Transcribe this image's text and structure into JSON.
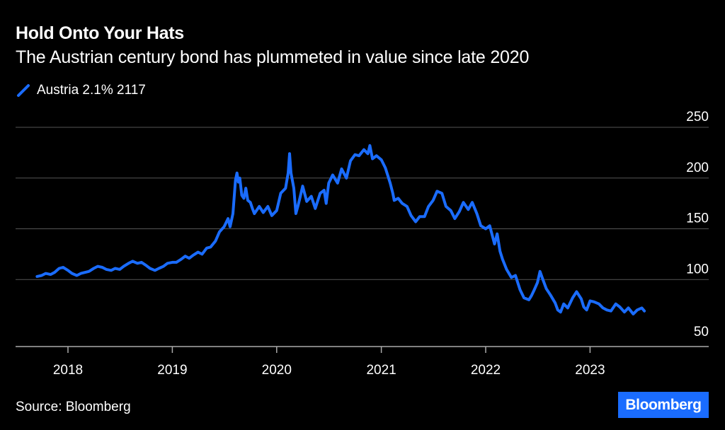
{
  "header": {
    "title": "Hold Onto Your Hats",
    "subtitle": "The Austrian century bond has plummeted in value since late 2020"
  },
  "footer": {
    "source": "Source: Bloomberg",
    "logo_text": "Bloomberg"
  },
  "colors": {
    "background": "#000000",
    "series": "#1a6cff",
    "grid": "#555555",
    "text": "#ffffff",
    "logo_bg": "#1a6cff"
  },
  "chart_data": {
    "type": "line",
    "title": "Hold Onto Your Hats",
    "subtitle": "The Austrian century bond has plummeted in value since late 2020",
    "xlabel": "",
    "ylabel": "",
    "y_axis_position": "right",
    "ylim": [
      45,
      250
    ],
    "yticks": [
      50,
      100,
      150,
      200,
      250
    ],
    "xticks": [
      "2018",
      "2019",
      "2020",
      "2021",
      "2022",
      "2023"
    ],
    "xlim": [
      "2017-09-01",
      "2024-01-01"
    ],
    "grid": "horizontal",
    "legend_position": "top-left",
    "series": [
      {
        "name": "Austria 2.1% 2117",
        "color": "#1a6cff",
        "points": [
          [
            "2017-09-15",
            103
          ],
          [
            "2017-10-01",
            104
          ],
          [
            "2017-10-15",
            106
          ],
          [
            "2017-11-01",
            105
          ],
          [
            "2017-11-15",
            107
          ],
          [
            "2017-12-01",
            111
          ],
          [
            "2017-12-15",
            112
          ],
          [
            "2018-01-01",
            109
          ],
          [
            "2018-01-15",
            106
          ],
          [
            "2018-02-01",
            104
          ],
          [
            "2018-02-15",
            106
          ],
          [
            "2018-03-01",
            107
          ],
          [
            "2018-03-15",
            108
          ],
          [
            "2018-04-01",
            111
          ],
          [
            "2018-04-15",
            113
          ],
          [
            "2018-05-01",
            112
          ],
          [
            "2018-05-15",
            110
          ],
          [
            "2018-06-01",
            109
          ],
          [
            "2018-06-15",
            111
          ],
          [
            "2018-07-01",
            110
          ],
          [
            "2018-07-15",
            113
          ],
          [
            "2018-08-01",
            116
          ],
          [
            "2018-08-15",
            118
          ],
          [
            "2018-09-01",
            116
          ],
          [
            "2018-09-15",
            117
          ],
          [
            "2018-10-01",
            114
          ],
          [
            "2018-10-15",
            111
          ],
          [
            "2018-11-01",
            109
          ],
          [
            "2018-11-15",
            111
          ],
          [
            "2018-12-01",
            113
          ],
          [
            "2018-12-15",
            116
          ],
          [
            "2019-01-01",
            117
          ],
          [
            "2019-01-15",
            117
          ],
          [
            "2019-02-01",
            120
          ],
          [
            "2019-02-15",
            123
          ],
          [
            "2019-03-01",
            121
          ],
          [
            "2019-03-15",
            124
          ],
          [
            "2019-04-01",
            127
          ],
          [
            "2019-04-15",
            125
          ],
          [
            "2019-05-01",
            131
          ],
          [
            "2019-05-15",
            132
          ],
          [
            "2019-06-01",
            138
          ],
          [
            "2019-06-15",
            147
          ],
          [
            "2019-07-01",
            152
          ],
          [
            "2019-07-15",
            160
          ],
          [
            "2019-07-22",
            152
          ],
          [
            "2019-08-01",
            165
          ],
          [
            "2019-08-10",
            198
          ],
          [
            "2019-08-15",
            205
          ],
          [
            "2019-08-20",
            196
          ],
          [
            "2019-08-25",
            200
          ],
          [
            "2019-09-01",
            183
          ],
          [
            "2019-09-08",
            180
          ],
          [
            "2019-09-15",
            190
          ],
          [
            "2019-09-22",
            178
          ],
          [
            "2019-10-01",
            176
          ],
          [
            "2019-10-08",
            170
          ],
          [
            "2019-10-15",
            165
          ],
          [
            "2019-11-01",
            172
          ],
          [
            "2019-11-15",
            166
          ],
          [
            "2019-12-01",
            172
          ],
          [
            "2019-12-15",
            163
          ],
          [
            "2020-01-01",
            168
          ],
          [
            "2020-01-15",
            185
          ],
          [
            "2020-02-01",
            190
          ],
          [
            "2020-02-10",
            205
          ],
          [
            "2020-02-15",
            224
          ],
          [
            "2020-02-20",
            205
          ],
          [
            "2020-03-01",
            190
          ],
          [
            "2020-03-08",
            165
          ],
          [
            "2020-03-15",
            172
          ],
          [
            "2020-03-22",
            180
          ],
          [
            "2020-04-01",
            192
          ],
          [
            "2020-04-15",
            177
          ],
          [
            "2020-05-01",
            182
          ],
          [
            "2020-05-15",
            170
          ],
          [
            "2020-06-01",
            185
          ],
          [
            "2020-06-15",
            188
          ],
          [
            "2020-06-22",
            175
          ],
          [
            "2020-07-01",
            195
          ],
          [
            "2020-07-15",
            203
          ],
          [
            "2020-08-01",
            195
          ],
          [
            "2020-08-15",
            209
          ],
          [
            "2020-09-01",
            200
          ],
          [
            "2020-09-15",
            217
          ],
          [
            "2020-10-01",
            223
          ],
          [
            "2020-10-15",
            222
          ],
          [
            "2020-11-01",
            228
          ],
          [
            "2020-11-15",
            224
          ],
          [
            "2020-11-22",
            232
          ],
          [
            "2020-12-01",
            219
          ],
          [
            "2020-12-15",
            222
          ],
          [
            "2021-01-01",
            218
          ],
          [
            "2021-01-15",
            210
          ],
          [
            "2021-02-01",
            195
          ],
          [
            "2021-02-10",
            185
          ],
          [
            "2021-02-15",
            178
          ],
          [
            "2021-03-01",
            180
          ],
          [
            "2021-03-15",
            175
          ],
          [
            "2021-04-01",
            172
          ],
          [
            "2021-04-15",
            163
          ],
          [
            "2021-05-01",
            157
          ],
          [
            "2021-05-15",
            162
          ],
          [
            "2021-06-01",
            162
          ],
          [
            "2021-06-15",
            172
          ],
          [
            "2021-07-01",
            178
          ],
          [
            "2021-07-15",
            187
          ],
          [
            "2021-08-01",
            185
          ],
          [
            "2021-08-15",
            172
          ],
          [
            "2021-09-01",
            168
          ],
          [
            "2021-09-15",
            160
          ],
          [
            "2021-10-01",
            167
          ],
          [
            "2021-10-15",
            176
          ],
          [
            "2021-11-01",
            169
          ],
          [
            "2021-11-15",
            176
          ],
          [
            "2021-12-01",
            165
          ],
          [
            "2021-12-15",
            153
          ],
          [
            "2022-01-01",
            150
          ],
          [
            "2022-01-15",
            153
          ],
          [
            "2022-02-01",
            135
          ],
          [
            "2022-02-10",
            145
          ],
          [
            "2022-02-20",
            128
          ],
          [
            "2022-03-01",
            120
          ],
          [
            "2022-03-15",
            110
          ],
          [
            "2022-04-01",
            102
          ],
          [
            "2022-04-15",
            104
          ],
          [
            "2022-05-01",
            90
          ],
          [
            "2022-05-15",
            82
          ],
          [
            "2022-06-01",
            80
          ],
          [
            "2022-06-10",
            84
          ],
          [
            "2022-06-20",
            90
          ],
          [
            "2022-07-01",
            97
          ],
          [
            "2022-07-10",
            108
          ],
          [
            "2022-07-20",
            100
          ],
          [
            "2022-08-01",
            91
          ],
          [
            "2022-08-15",
            85
          ],
          [
            "2022-09-01",
            77
          ],
          [
            "2022-09-10",
            70
          ],
          [
            "2022-09-20",
            68
          ],
          [
            "2022-10-01",
            76
          ],
          [
            "2022-10-15",
            72
          ],
          [
            "2022-11-01",
            82
          ],
          [
            "2022-11-15",
            88
          ],
          [
            "2022-12-01",
            81
          ],
          [
            "2022-12-10",
            73
          ],
          [
            "2022-12-20",
            70
          ],
          [
            "2023-01-01",
            79
          ],
          [
            "2023-01-15",
            78
          ],
          [
            "2023-02-01",
            76
          ],
          [
            "2023-02-15",
            72
          ],
          [
            "2023-03-01",
            70
          ],
          [
            "2023-03-15",
            69
          ],
          [
            "2023-04-01",
            76
          ],
          [
            "2023-04-15",
            73
          ],
          [
            "2023-05-01",
            68
          ],
          [
            "2023-05-15",
            72
          ],
          [
            "2023-06-01",
            66
          ],
          [
            "2023-06-15",
            70
          ],
          [
            "2023-07-01",
            72
          ],
          [
            "2023-07-10",
            69
          ]
        ]
      }
    ]
  }
}
